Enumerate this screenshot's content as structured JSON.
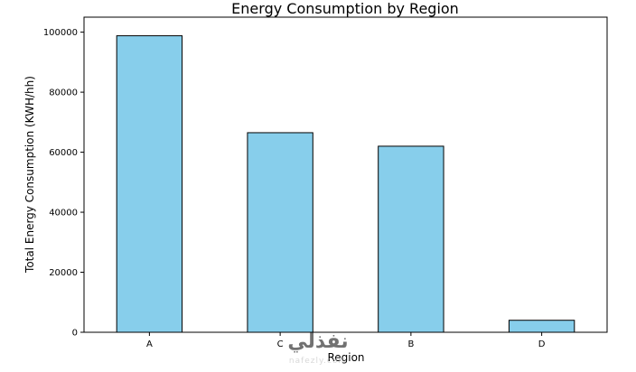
{
  "chart_data": {
    "type": "bar",
    "title": "Energy Consumption by Region",
    "xlabel": "Region",
    "ylabel": "Total Energy Consumption (KWH/hh)",
    "categories": [
      "A",
      "C",
      "B",
      "D"
    ],
    "values": [
      98800,
      66500,
      62000,
      4000
    ],
    "ylim": [
      0,
      105000
    ],
    "yticks": [
      0,
      20000,
      40000,
      60000,
      80000,
      100000
    ],
    "bar_color": "#87CEEB",
    "bar_edge_color": "#000000",
    "grid": false,
    "legend": "none"
  },
  "watermark": {
    "logo_text": "نفذلي",
    "url_text": "nafezly.com"
  }
}
